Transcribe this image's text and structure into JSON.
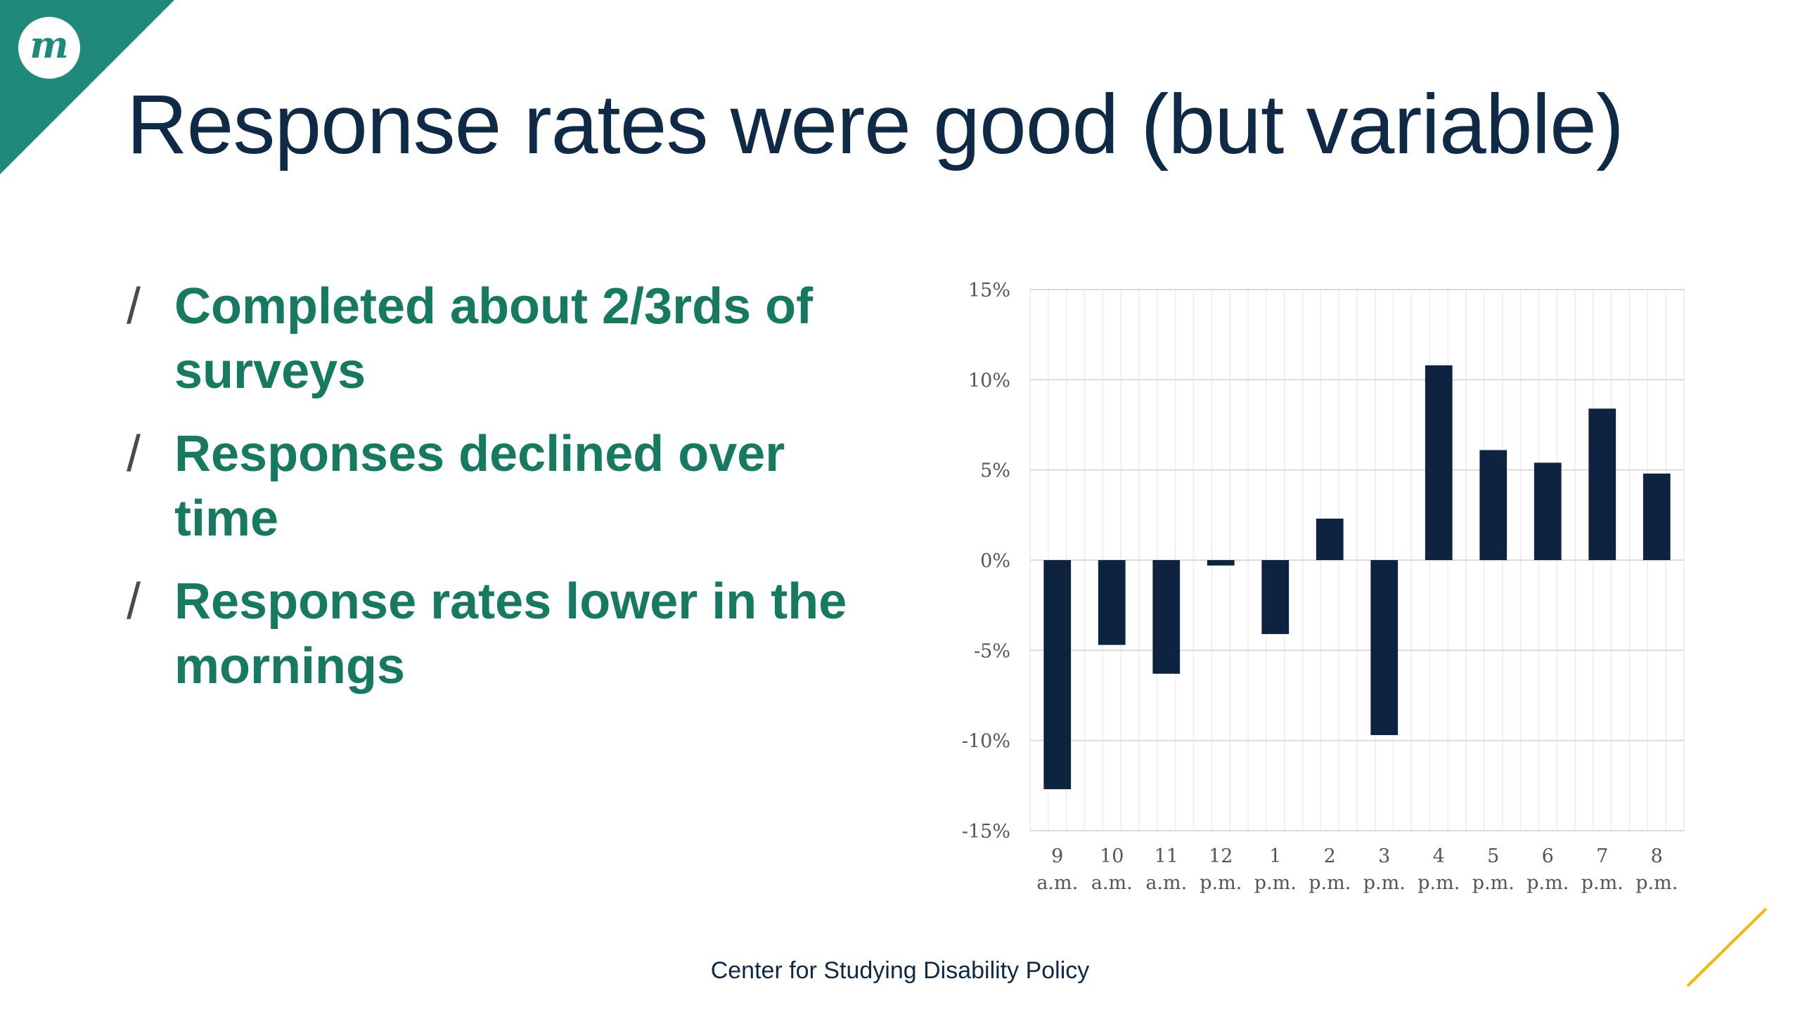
{
  "slide": {
    "title": "Response rates were good (but variable)",
    "bullets": [
      "Completed about 2/3rds of surveys",
      "Responses declined over time",
      "Response rates lower in the mornings"
    ],
    "bullet_mark": "/",
    "footer": "Center for Studying Disability Policy",
    "logo_letter": "m",
    "colors": {
      "title": "#0f2a47",
      "bullets": "#157a5f",
      "corner": "#1f8a7a",
      "bars": "#0d2340",
      "accent": "#f2b705"
    }
  },
  "chart_data": {
    "type": "bar",
    "categories": [
      [
        "9",
        "a.m."
      ],
      [
        "10",
        "a.m."
      ],
      [
        "11",
        "a.m."
      ],
      [
        "12",
        "p.m."
      ],
      [
        "1",
        "p.m."
      ],
      [
        "2",
        "p.m."
      ],
      [
        "3",
        "p.m."
      ],
      [
        "4",
        "p.m."
      ],
      [
        "5",
        "p.m."
      ],
      [
        "6",
        "p.m."
      ],
      [
        "7",
        "p.m."
      ],
      [
        "8",
        "p.m."
      ]
    ],
    "values": [
      -12.7,
      -4.7,
      -6.3,
      -0.3,
      -4.1,
      2.3,
      -9.7,
      10.8,
      6.1,
      5.4,
      8.4,
      4.8
    ],
    "ylim": [
      -15,
      15
    ],
    "yticks": [
      15,
      10,
      5,
      0,
      -5,
      -10,
      -15
    ],
    "ytick_labels": [
      "15%",
      "10%",
      "5%",
      "0%",
      "-5%",
      "-10%",
      "-15%"
    ],
    "title": "",
    "xlabel": "",
    "ylabel": "",
    "grid": true,
    "legend": "none"
  }
}
